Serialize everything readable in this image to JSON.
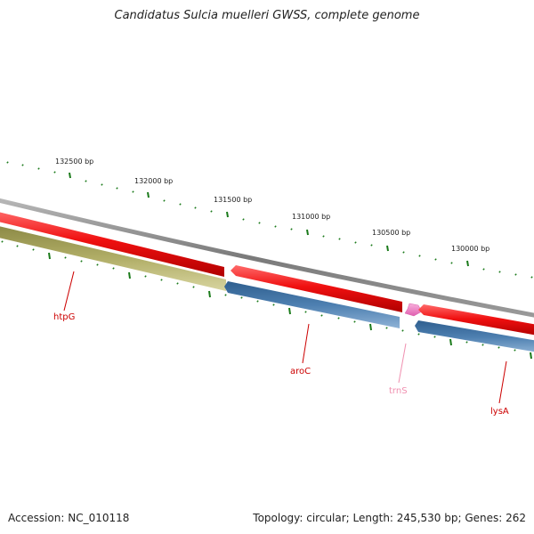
{
  "title": "Candidatus Sulcia muelleri GWSS, complete genome",
  "footer": {
    "accession": "Accession: NC_010118",
    "topology": "Topology: circular; Length: 245,530 bp; Genes: 262"
  },
  "colors": {
    "backbone": "#8a8a8a",
    "forward_gene": "#e8171c",
    "reverse_gene": "#4d7fb0",
    "other_gene": "#b0ad66",
    "trna": "#f080c0",
    "gene_label": "#cc0000",
    "trna_label": "#f090b0",
    "ticks": "#1a7a1a"
  },
  "ticks": {
    "labels": [
      "132500 bp",
      "132000 bp",
      "131500 bp",
      "131000 bp",
      "130500 bp",
      "130000 bp"
    ]
  },
  "genes": [
    {
      "name": "htpG",
      "strand": "reverse",
      "color_key": "other_gene"
    },
    {
      "name": "",
      "strand": "forward",
      "color_key": "forward_gene"
    },
    {
      "name": "aroC",
      "strand": "reverse",
      "color_key": "reverse_gene"
    },
    {
      "name": "trnS",
      "strand": "forward",
      "color_key": "trna"
    },
    {
      "name": "",
      "strand": "forward",
      "color_key": "forward_gene"
    },
    {
      "name": "lysA",
      "strand": "reverse",
      "color_key": "reverse_gene"
    }
  ]
}
